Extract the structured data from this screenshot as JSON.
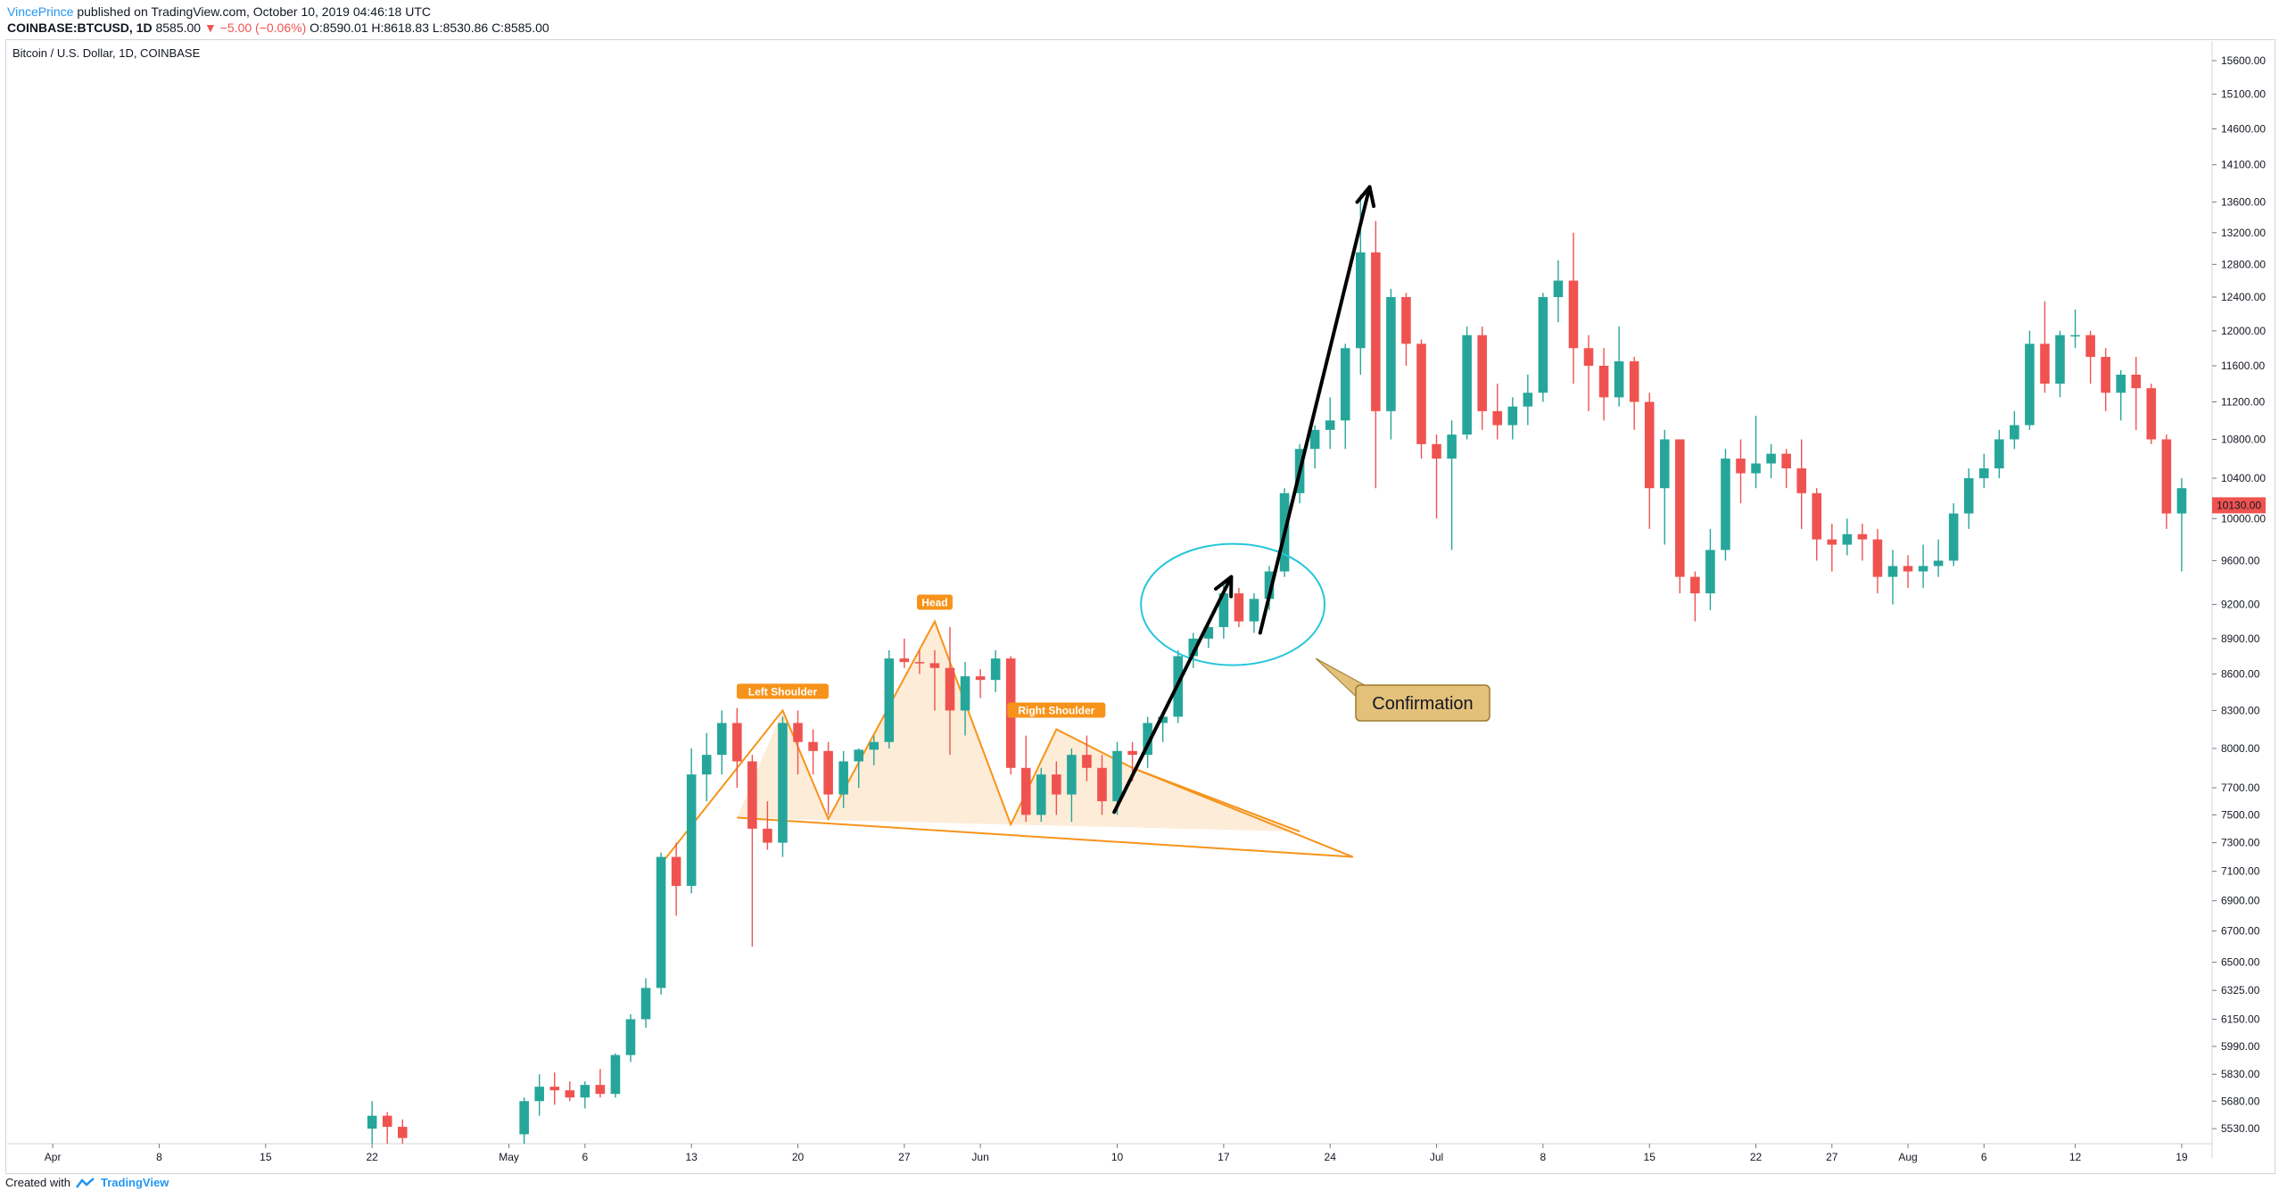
{
  "header": {
    "user": "VincePrince",
    "published": "published on TradingView.com, October 10, 2019 04:46:18 UTC",
    "symbol": "COINBASE:BTCUSD, 1D",
    "last": "8585.00",
    "change": "−5.00 (−0.06%)",
    "ohlc": "O:8590.01 H:8618.83 L:8530.86 C:8585.00"
  },
  "series_title": "Bitcoin / U.S. Dollar, 1D, COINBASE",
  "footer": {
    "created": "Created with",
    "brand": "TradingView"
  },
  "colors": {
    "up": "#26a69a",
    "down": "#ef5350",
    "pattern": "#f7931a",
    "pattern_fill": "#fde9d0",
    "circle": "#26c6da",
    "callout": "#e3c17a"
  },
  "chart_data": {
    "type": "candlestick",
    "y_scale": "log",
    "ylim": [
      5450,
      15900
    ],
    "y_ticks": [
      "15600.00",
      "15100.00",
      "14600.00",
      "14100.00",
      "13600.00",
      "13200.00",
      "12800.00",
      "12400.00",
      "12000.00",
      "11600.00",
      "11200.00",
      "10800.00",
      "10400.00",
      "10000.00",
      "9600.00",
      "9200.00",
      "8900.00",
      "8600.00",
      "8300.00",
      "8000.00",
      "7700.00",
      "7500.00",
      "7300.00",
      "7100.00",
      "6900.00",
      "6700.00",
      "6500.00",
      "6325.00",
      "6150.00",
      "5990.00",
      "5830.00",
      "5680.00",
      "5530.00"
    ],
    "x_ticks": [
      {
        "label": "Apr",
        "day": 0
      },
      {
        "label": "8",
        "day": 7
      },
      {
        "label": "15",
        "day": 14
      },
      {
        "label": "22",
        "day": 21
      },
      {
        "label": "May",
        "day": 30
      },
      {
        "label": "6",
        "day": 35
      },
      {
        "label": "13",
        "day": 42
      },
      {
        "label": "20",
        "day": 49
      },
      {
        "label": "27",
        "day": 56
      },
      {
        "label": "Jun",
        "day": 61
      },
      {
        "label": "10",
        "day": 70
      },
      {
        "label": "17",
        "day": 77
      },
      {
        "label": "24",
        "day": 84
      },
      {
        "label": "Jul",
        "day": 91
      },
      {
        "label": "8",
        "day": 98
      },
      {
        "label": "15",
        "day": 105
      },
      {
        "label": "22",
        "day": 112
      },
      {
        "label": "27",
        "day": 117
      },
      {
        "label": "Aug",
        "day": 122
      },
      {
        "label": "6",
        "day": 127
      },
      {
        "label": "12",
        "day": 133
      },
      {
        "label": "19",
        "day": 140
      }
    ],
    "x_range_days": [
      -3,
      142
    ],
    "last_price_label": "10130.00",
    "last_price": 10130,
    "candles": [
      {
        "d": 21,
        "o": 5530,
        "h": 5680,
        "l": 5450,
        "c": 5600
      },
      {
        "d": 22,
        "o": 5600,
        "h": 5620,
        "l": 5450,
        "c": 5540
      },
      {
        "d": 23,
        "o": 5540,
        "h": 5580,
        "l": 5450,
        "c": 5480
      },
      {
        "d": 31,
        "o": 5500,
        "h": 5700,
        "l": 5450,
        "c": 5680
      },
      {
        "d": 32,
        "o": 5680,
        "h": 5830,
        "l": 5600,
        "c": 5760
      },
      {
        "d": 33,
        "o": 5760,
        "h": 5840,
        "l": 5660,
        "c": 5740
      },
      {
        "d": 34,
        "o": 5740,
        "h": 5790,
        "l": 5680,
        "c": 5700
      },
      {
        "d": 35,
        "o": 5700,
        "h": 5790,
        "l": 5640,
        "c": 5770
      },
      {
        "d": 36,
        "o": 5770,
        "h": 5860,
        "l": 5700,
        "c": 5720
      },
      {
        "d": 37,
        "o": 5720,
        "h": 5950,
        "l": 5700,
        "c": 5940
      },
      {
        "d": 38,
        "o": 5940,
        "h": 6180,
        "l": 5900,
        "c": 6150
      },
      {
        "d": 39,
        "o": 6150,
        "h": 6400,
        "l": 6100,
        "c": 6340
      },
      {
        "d": 40,
        "o": 6340,
        "h": 7230,
        "l": 6300,
        "c": 7200
      },
      {
        "d": 41,
        "o": 7200,
        "h": 7300,
        "l": 6800,
        "c": 7000
      },
      {
        "d": 42,
        "o": 7000,
        "h": 8000,
        "l": 6950,
        "c": 7800
      },
      {
        "d": 43,
        "o": 7800,
        "h": 8120,
        "l": 7600,
        "c": 7950
      },
      {
        "d": 44,
        "o": 7950,
        "h": 8300,
        "l": 7800,
        "c": 8200
      },
      {
        "d": 45,
        "o": 8200,
        "h": 8320,
        "l": 7700,
        "c": 7900
      },
      {
        "d": 46,
        "o": 7900,
        "h": 7950,
        "l": 6600,
        "c": 7400
      },
      {
        "d": 47,
        "o": 7400,
        "h": 7600,
        "l": 7250,
        "c": 7300
      },
      {
        "d": 48,
        "o": 7300,
        "h": 8250,
        "l": 7200,
        "c": 8200
      },
      {
        "d": 49,
        "o": 8200,
        "h": 8300,
        "l": 7800,
        "c": 8050
      },
      {
        "d": 50,
        "o": 8050,
        "h": 8150,
        "l": 7800,
        "c": 7980
      },
      {
        "d": 51,
        "o": 7980,
        "h": 8050,
        "l": 7500,
        "c": 7650
      },
      {
        "d": 52,
        "o": 7650,
        "h": 7980,
        "l": 7550,
        "c": 7900
      },
      {
        "d": 53,
        "o": 7900,
        "h": 8000,
        "l": 7700,
        "c": 7990
      },
      {
        "d": 54,
        "o": 7990,
        "h": 8100,
        "l": 7870,
        "c": 8050
      },
      {
        "d": 55,
        "o": 8050,
        "h": 8800,
        "l": 8000,
        "c": 8730
      },
      {
        "d": 56,
        "o": 8730,
        "h": 8900,
        "l": 8650,
        "c": 8700
      },
      {
        "d": 57,
        "o": 8700,
        "h": 8800,
        "l": 8600,
        "c": 8690
      },
      {
        "d": 58,
        "o": 8690,
        "h": 8800,
        "l": 8300,
        "c": 8650
      },
      {
        "d": 59,
        "o": 8650,
        "h": 9000,
        "l": 7950,
        "c": 8300
      },
      {
        "d": 60,
        "o": 8300,
        "h": 8700,
        "l": 8100,
        "c": 8580
      },
      {
        "d": 61,
        "o": 8580,
        "h": 8640,
        "l": 8400,
        "c": 8550
      },
      {
        "d": 62,
        "o": 8550,
        "h": 8800,
        "l": 8450,
        "c": 8730
      },
      {
        "d": 63,
        "o": 8730,
        "h": 8750,
        "l": 7800,
        "c": 7850
      },
      {
        "d": 64,
        "o": 7850,
        "h": 8100,
        "l": 7450,
        "c": 7500
      },
      {
        "d": 65,
        "o": 7500,
        "h": 7850,
        "l": 7450,
        "c": 7800
      },
      {
        "d": 66,
        "o": 7800,
        "h": 7900,
        "l": 7500,
        "c": 7650
      },
      {
        "d": 67,
        "o": 7650,
        "h": 8000,
        "l": 7450,
        "c": 7950
      },
      {
        "d": 68,
        "o": 7950,
        "h": 8100,
        "l": 7750,
        "c": 7850
      },
      {
        "d": 69,
        "o": 7850,
        "h": 7950,
        "l": 7500,
        "c": 7600
      },
      {
        "d": 70,
        "o": 7600,
        "h": 8050,
        "l": 7500,
        "c": 7980
      },
      {
        "d": 71,
        "o": 7980,
        "h": 8050,
        "l": 7750,
        "c": 7950
      },
      {
        "d": 72,
        "o": 7950,
        "h": 8250,
        "l": 7850,
        "c": 8200
      },
      {
        "d": 73,
        "o": 8200,
        "h": 8280,
        "l": 8050,
        "c": 8250
      },
      {
        "d": 74,
        "o": 8250,
        "h": 8800,
        "l": 8200,
        "c": 8750
      },
      {
        "d": 75,
        "o": 8750,
        "h": 8950,
        "l": 8650,
        "c": 8900
      },
      {
        "d": 76,
        "o": 8900,
        "h": 9050,
        "l": 8820,
        "c": 9000
      },
      {
        "d": 77,
        "o": 9000,
        "h": 9400,
        "l": 8900,
        "c": 9300
      },
      {
        "d": 78,
        "o": 9300,
        "h": 9350,
        "l": 9000,
        "c": 9050
      },
      {
        "d": 79,
        "o": 9050,
        "h": 9300,
        "l": 8950,
        "c": 9250
      },
      {
        "d": 80,
        "o": 9250,
        "h": 9550,
        "l": 9150,
        "c": 9500
      },
      {
        "d": 81,
        "o": 9500,
        "h": 10300,
        "l": 9450,
        "c": 10250
      },
      {
        "d": 82,
        "o": 10250,
        "h": 10750,
        "l": 10150,
        "c": 10700
      },
      {
        "d": 83,
        "o": 10700,
        "h": 10950,
        "l": 10500,
        "c": 10900
      },
      {
        "d": 84,
        "o": 10900,
        "h": 11250,
        "l": 10700,
        "c": 11000
      },
      {
        "d": 85,
        "o": 11000,
        "h": 11850,
        "l": 10700,
        "c": 11800
      },
      {
        "d": 86,
        "o": 11800,
        "h": 13700,
        "l": 11500,
        "c": 12950
      },
      {
        "d": 87,
        "o": 12950,
        "h": 13350,
        "l": 10300,
        "c": 11100
      },
      {
        "d": 88,
        "o": 11100,
        "h": 12500,
        "l": 10800,
        "c": 12400
      },
      {
        "d": 89,
        "o": 12400,
        "h": 12450,
        "l": 11600,
        "c": 11850
      },
      {
        "d": 90,
        "o": 11850,
        "h": 11900,
        "l": 10600,
        "c": 10750
      },
      {
        "d": 91,
        "o": 10750,
        "h": 10850,
        "l": 10000,
        "c": 10600
      },
      {
        "d": 92,
        "o": 10600,
        "h": 11000,
        "l": 9700,
        "c": 10850
      },
      {
        "d": 93,
        "o": 10850,
        "h": 12050,
        "l": 10800,
        "c": 11950
      },
      {
        "d": 94,
        "o": 11950,
        "h": 12050,
        "l": 10900,
        "c": 11100
      },
      {
        "d": 95,
        "o": 11100,
        "h": 11400,
        "l": 10800,
        "c": 10950
      },
      {
        "d": 96,
        "o": 10950,
        "h": 11250,
        "l": 10800,
        "c": 11150
      },
      {
        "d": 97,
        "o": 11150,
        "h": 11500,
        "l": 10950,
        "c": 11300
      },
      {
        "d": 98,
        "o": 11300,
        "h": 12450,
        "l": 11200,
        "c": 12400
      },
      {
        "d": 99,
        "o": 12400,
        "h": 12850,
        "l": 12100,
        "c": 12600
      },
      {
        "d": 100,
        "o": 12600,
        "h": 13200,
        "l": 11400,
        "c": 11800
      },
      {
        "d": 101,
        "o": 11800,
        "h": 11950,
        "l": 11100,
        "c": 11600
      },
      {
        "d": 102,
        "o": 11600,
        "h": 11800,
        "l": 11000,
        "c": 11250
      },
      {
        "d": 103,
        "o": 11250,
        "h": 12050,
        "l": 11150,
        "c": 11650
      },
      {
        "d": 104,
        "o": 11650,
        "h": 11700,
        "l": 10900,
        "c": 11200
      },
      {
        "d": 105,
        "o": 11200,
        "h": 11300,
        "l": 9900,
        "c": 10300
      },
      {
        "d": 106,
        "o": 10300,
        "h": 10900,
        "l": 9750,
        "c": 10800
      },
      {
        "d": 107,
        "o": 10800,
        "h": 10800,
        "l": 9300,
        "c": 9450
      },
      {
        "d": 108,
        "o": 9450,
        "h": 9500,
        "l": 9050,
        "c": 9300
      },
      {
        "d": 109,
        "o": 9300,
        "h": 9900,
        "l": 9150,
        "c": 9700
      },
      {
        "d": 110,
        "o": 9700,
        "h": 10700,
        "l": 9600,
        "c": 10600
      },
      {
        "d": 111,
        "o": 10600,
        "h": 10800,
        "l": 10150,
        "c": 10450
      },
      {
        "d": 112,
        "o": 10450,
        "h": 11050,
        "l": 10300,
        "c": 10550
      },
      {
        "d": 113,
        "o": 10550,
        "h": 10750,
        "l": 10400,
        "c": 10650
      },
      {
        "d": 114,
        "o": 10650,
        "h": 10700,
        "l": 10300,
        "c": 10500
      },
      {
        "d": 115,
        "o": 10500,
        "h": 10800,
        "l": 9900,
        "c": 10250
      },
      {
        "d": 116,
        "o": 10250,
        "h": 10300,
        "l": 9600,
        "c": 9800
      },
      {
        "d": 117,
        "o": 9800,
        "h": 9950,
        "l": 9500,
        "c": 9750
      },
      {
        "d": 118,
        "o": 9750,
        "h": 10000,
        "l": 9650,
        "c": 9850
      },
      {
        "d": 119,
        "o": 9850,
        "h": 9950,
        "l": 9600,
        "c": 9800
      },
      {
        "d": 120,
        "o": 9800,
        "h": 9900,
        "l": 9300,
        "c": 9450
      },
      {
        "d": 121,
        "o": 9450,
        "h": 9700,
        "l": 9200,
        "c": 9550
      },
      {
        "d": 122,
        "o": 9550,
        "h": 9650,
        "l": 9350,
        "c": 9500
      },
      {
        "d": 123,
        "o": 9500,
        "h": 9750,
        "l": 9350,
        "c": 9550
      },
      {
        "d": 124,
        "o": 9550,
        "h": 9800,
        "l": 9450,
        "c": 9600
      },
      {
        "d": 125,
        "o": 9600,
        "h": 10150,
        "l": 9550,
        "c": 10050
      },
      {
        "d": 126,
        "o": 10050,
        "h": 10500,
        "l": 9900,
        "c": 10400
      },
      {
        "d": 127,
        "o": 10400,
        "h": 10650,
        "l": 10300,
        "c": 10500
      },
      {
        "d": 128,
        "o": 10500,
        "h": 10900,
        "l": 10400,
        "c": 10800
      },
      {
        "d": 129,
        "o": 10800,
        "h": 11100,
        "l": 10700,
        "c": 10950
      },
      {
        "d": 130,
        "o": 10950,
        "h": 12000,
        "l": 10900,
        "c": 11850
      },
      {
        "d": 131,
        "o": 11850,
        "h": 12350,
        "l": 11300,
        "c": 11400
      },
      {
        "d": 132,
        "o": 11400,
        "h": 12000,
        "l": 11250,
        "c": 11950
      },
      {
        "d": 133,
        "o": 11950,
        "h": 12250,
        "l": 11800,
        "c": 11950
      },
      {
        "d": 134,
        "o": 11950,
        "h": 12000,
        "l": 11400,
        "c": 11700
      },
      {
        "d": 135,
        "o": 11700,
        "h": 11800,
        "l": 11100,
        "c": 11300
      },
      {
        "d": 136,
        "o": 11300,
        "h": 11550,
        "l": 11000,
        "c": 11500
      },
      {
        "d": 137,
        "o": 11500,
        "h": 11700,
        "l": 10900,
        "c": 11350
      },
      {
        "d": 138,
        "o": 11350,
        "h": 11400,
        "l": 10750,
        "c": 10800
      },
      {
        "d": 139,
        "o": 10800,
        "h": 10850,
        "l": 9900,
        "c": 10050
      },
      {
        "d": 140,
        "o": 10050,
        "h": 10400,
        "l": 9500,
        "c": 10300
      }
    ],
    "annotations": {
      "pattern_labels": [
        "Left Shoulder",
        "Head",
        "Right Shoulder"
      ],
      "callout": "Confirmation"
    }
  }
}
